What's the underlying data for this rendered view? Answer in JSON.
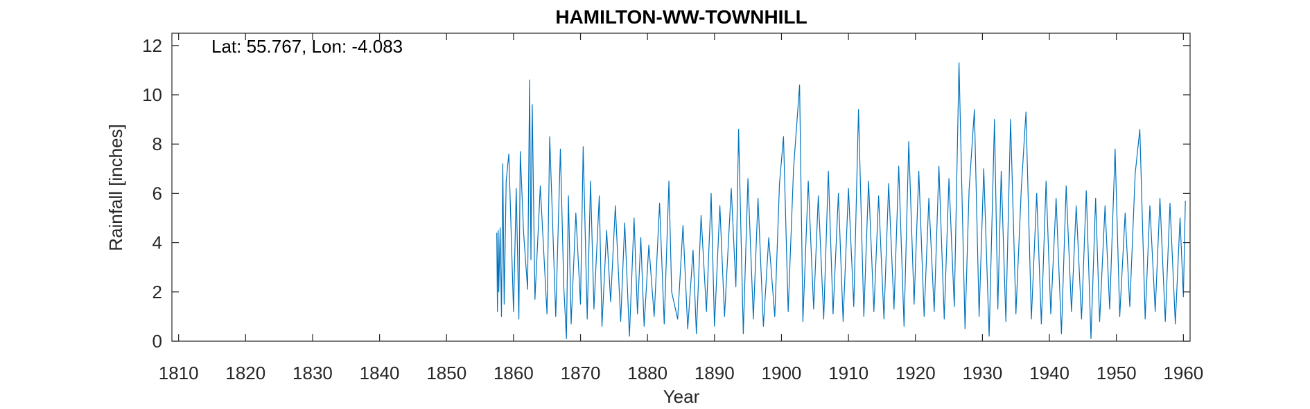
{
  "chart_data": {
    "type": "line",
    "title": "HAMILTON-WW-TOWNHILL",
    "annotation": "Lat: 55.767, Lon: -4.083",
    "xlabel": "Year",
    "ylabel": "Rainfall [inches]",
    "xlim": [
      1809,
      1961
    ],
    "ylim": [
      0,
      12.5
    ],
    "xticks": [
      1810,
      1820,
      1830,
      1840,
      1850,
      1860,
      1870,
      1880,
      1890,
      1900,
      1910,
      1920,
      1930,
      1940,
      1950,
      1960
    ],
    "yticks": [
      0,
      2,
      4,
      6,
      8,
      10,
      12
    ],
    "grid": false,
    "line_color": "#0072BD",
    "series": [
      {
        "x": [
          1857.5,
          1857.6,
          1857.7,
          1857.8,
          1858.0,
          1858.2,
          1858.4,
          1858.6,
          1858.9,
          1859.3,
          1860.0,
          1860.4,
          1860.8,
          1861.0,
          1861.5,
          1862.1,
          1862.4,
          1862.6,
          1862.8,
          1863.2,
          1864.0,
          1865.0,
          1865.4,
          1866.3,
          1867.0,
          1867.5,
          1867.9,
          1868.2,
          1868.6,
          1869.3,
          1870.0,
          1870.4,
          1871.0,
          1871.5,
          1872.0,
          1872.8,
          1873.2,
          1873.9,
          1874.5,
          1875.2,
          1876.0,
          1876.6,
          1877.3,
          1878.0,
          1878.5,
          1879.0,
          1879.5,
          1880.2,
          1881.0,
          1881.8,
          1882.5,
          1883.2,
          1883.6,
          1884.5,
          1885.3,
          1886.0,
          1886.8,
          1887.3,
          1888.0,
          1888.8,
          1889.5,
          1890.0,
          1890.8,
          1891.5,
          1892.5,
          1893.2,
          1893.6,
          1894.3,
          1895.0,
          1895.8,
          1896.5,
          1897.3,
          1898.1,
          1899.0,
          1899.7,
          1900.3,
          1901.0,
          1901.8,
          1902.7,
          1903.2,
          1904.0,
          1904.8,
          1905.5,
          1906.3,
          1907.0,
          1907.7,
          1908.5,
          1909.2,
          1910.0,
          1910.8,
          1911.5,
          1912.3,
          1913.0,
          1913.8,
          1914.5,
          1915.3,
          1916.0,
          1916.8,
          1917.5,
          1918.3,
          1919.0,
          1919.8,
          1920.5,
          1921.3,
          1922.0,
          1922.8,
          1923.5,
          1924.3,
          1925.0,
          1925.8,
          1926.5,
          1927.4,
          1928.0,
          1928.8,
          1929.5,
          1930.2,
          1931.0,
          1931.8,
          1932.3,
          1932.8,
          1933.5,
          1934.2,
          1935.0,
          1935.8,
          1936.5,
          1937.3,
          1938.1,
          1938.8,
          1939.5,
          1940.2,
          1941.0,
          1941.8,
          1942.5,
          1943.3,
          1944.0,
          1944.8,
          1945.5,
          1946.2,
          1946.9,
          1947.5,
          1948.3,
          1949.0,
          1949.8,
          1950.5,
          1951.3,
          1952.0,
          1952.8,
          1953.5,
          1954.3,
          1955.0,
          1955.8,
          1956.5,
          1957.3,
          1958.0,
          1958.8,
          1959.5,
          1960.0,
          1960.3
        ],
        "y": [
          4.4,
          1.2,
          4.5,
          2.0,
          4.6,
          1.0,
          7.2,
          1.5,
          6.5,
          7.6,
          1.2,
          6.2,
          0.9,
          7.7,
          4.4,
          2.1,
          10.6,
          3.3,
          9.6,
          1.7,
          6.3,
          1.1,
          8.3,
          1.0,
          7.8,
          2.2,
          0.1,
          5.9,
          0.7,
          5.2,
          1.5,
          7.9,
          0.9,
          6.5,
          1.3,
          5.9,
          0.6,
          4.5,
          1.6,
          5.5,
          0.8,
          4.8,
          0.2,
          5.0,
          1.1,
          4.2,
          0.6,
          3.9,
          1.0,
          5.6,
          0.7,
          6.5,
          2.0,
          0.9,
          4.7,
          0.5,
          3.7,
          0.3,
          5.1,
          1.2,
          6.0,
          0.6,
          5.5,
          1.0,
          6.2,
          2.2,
          8.6,
          0.3,
          6.6,
          0.9,
          5.8,
          0.6,
          4.2,
          1.0,
          6.4,
          8.3,
          1.2,
          7.0,
          10.4,
          0.8,
          6.5,
          1.3,
          5.9,
          0.9,
          6.9,
          1.1,
          6.0,
          0.8,
          6.2,
          1.4,
          9.4,
          1.0,
          6.5,
          1.2,
          5.9,
          0.9,
          6.4,
          1.3,
          7.1,
          0.6,
          8.1,
          1.5,
          6.9,
          1.0,
          5.8,
          1.2,
          7.1,
          0.9,
          6.6,
          1.4,
          11.3,
          0.5,
          6.1,
          9.4,
          1.0,
          7.0,
          0.2,
          9.0,
          1.3,
          6.9,
          0.8,
          9.0,
          1.1,
          6.2,
          9.3,
          0.9,
          6.0,
          0.7,
          6.5,
          1.1,
          5.8,
          0.3,
          6.3,
          1.2,
          5.5,
          0.9,
          6.1,
          0.1,
          5.8,
          0.8,
          5.5,
          1.3,
          7.8,
          1.0,
          5.2,
          1.4,
          6.8,
          8.6,
          0.9,
          5.5,
          1.2,
          5.8,
          0.8,
          5.6,
          0.7,
          5.0,
          1.8,
          5.7
        ]
      }
    ]
  }
}
